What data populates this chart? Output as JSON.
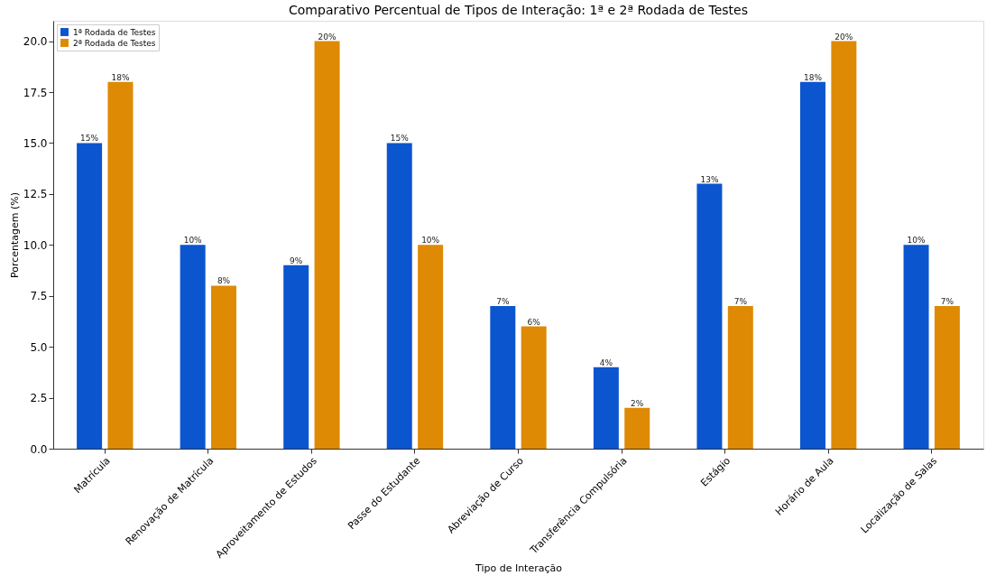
{
  "chart_data": {
    "type": "bar",
    "title": "Comparativo Percentual de Tipos de Interação: 1ª e 2ª Rodada de Testes",
    "xlabel": "Tipo de Interação",
    "ylabel": "Porcentagem (%)",
    "categories": [
      "Matrícula",
      "Renovação de Matrícula",
      "Aproveitamento de Estudos",
      "Passe do Estudante",
      "Abreviação de Curso",
      "Transferência Compulsória",
      "Estágio",
      "Horário de Aula",
      "Localização de Salas"
    ],
    "series": [
      {
        "name": "1ª Rodada de Testes",
        "color": "#0b55cf",
        "values": [
          15,
          10,
          9,
          15,
          7,
          4,
          13,
          18,
          10
        ],
        "value_labels": [
          "15%",
          "10%",
          "9%",
          "15%",
          "7%",
          "4%",
          "13%",
          "18%",
          "10%"
        ]
      },
      {
        "name": "2ª Rodada de Testes",
        "color": "#de8a04",
        "values": [
          18,
          8,
          20,
          10,
          6,
          2,
          7,
          20,
          7
        ],
        "value_labels": [
          "18%",
          "8%",
          "20%",
          "10%",
          "6%",
          "2%",
          "7%",
          "20%",
          "7%"
        ]
      }
    ],
    "ylim": [
      0,
      21
    ],
    "yticks": [
      {
        "value": 0,
        "label": "0.0"
      },
      {
        "value": 2.5,
        "label": "2.5"
      },
      {
        "value": 5,
        "label": "5.0"
      },
      {
        "value": 7.5,
        "label": "7.5"
      },
      {
        "value": 10,
        "label": "10.0"
      },
      {
        "value": 12.5,
        "label": "12.5"
      },
      {
        "value": 15,
        "label": "15.0"
      },
      {
        "value": 17.5,
        "label": "17.5"
      },
      {
        "value": 20,
        "label": "20.0"
      }
    ],
    "legend": "top left",
    "grid": false
  }
}
